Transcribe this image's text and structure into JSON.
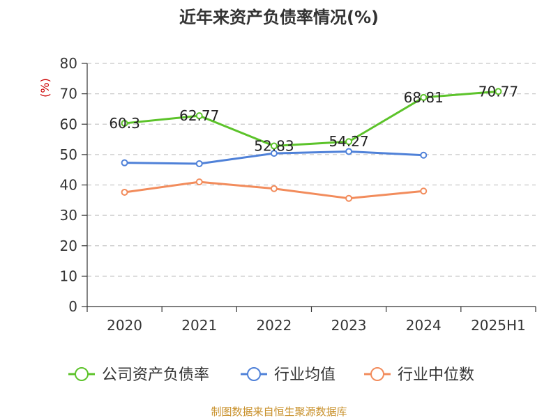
{
  "chart_data": {
    "type": "line",
    "title": "近年来资产负债率情况(%)",
    "unit_label": "(%)",
    "categories": [
      "2020",
      "2021",
      "2022",
      "2023",
      "2024",
      "2025H1"
    ],
    "ylim": [
      0,
      80
    ],
    "yticks": [
      0,
      10,
      20,
      30,
      40,
      50,
      60,
      70,
      80
    ],
    "grid": true,
    "legend_position": "bottom",
    "series": [
      {
        "name": "公司资产负债率",
        "color": "#5cc32a",
        "values": [
          60.3,
          62.77,
          52.83,
          54.27,
          68.81,
          70.77
        ],
        "labels": [
          "60.3",
          "62.77",
          "52.83",
          "54.27",
          "68.81",
          "70.77"
        ]
      },
      {
        "name": "行业均值",
        "color": "#4f81d8",
        "values": [
          47.3,
          47.0,
          50.4,
          51.0,
          49.8,
          null
        ]
      },
      {
        "name": "行业中位数",
        "color": "#f28c5c",
        "values": [
          37.6,
          41.0,
          38.8,
          35.6,
          38.0,
          null
        ]
      }
    ]
  },
  "footer": {
    "source": "制图数据来自恒生聚源数据库"
  }
}
